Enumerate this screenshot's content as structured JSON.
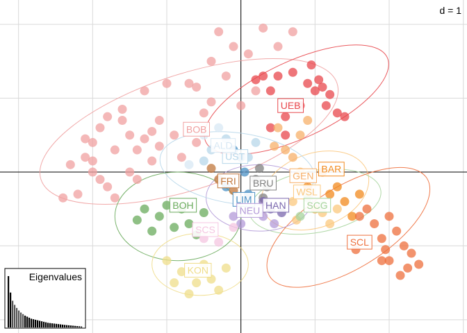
{
  "chart_data": {
    "type": "scatter",
    "scale_label": "d = 1",
    "grid": true,
    "xlim": [
      -3.25,
      3.05
    ],
    "ylim": [
      -2.18,
      2.33
    ],
    "groups": [
      {
        "name": "BOB",
        "color": "#f0a0a0",
        "label_pos": [
          -0.6,
          0.58
        ],
        "ellipse": {
          "cx": -0.7,
          "cy": 0.55,
          "rx": 2.1,
          "ry": 0.78,
          "angle": -18
        },
        "points": [
          [
            -0.3,
            1.9
          ],
          [
            -0.1,
            1.7
          ],
          [
            -0.4,
            1.5
          ],
          [
            -0.7,
            1.2
          ],
          [
            -1.0,
            1.2
          ],
          [
            -1.3,
            1.1
          ],
          [
            -1.6,
            0.85
          ],
          [
            -1.9,
            0.6
          ],
          [
            -2.0,
            0.4
          ],
          [
            -2.1,
            0.2
          ],
          [
            -2.0,
            0.0
          ],
          [
            -1.8,
            -0.2
          ],
          [
            -2.2,
            -0.3
          ],
          [
            -2.4,
            -0.35
          ],
          [
            -1.5,
            0.5
          ],
          [
            -1.4,
            0.3
          ],
          [
            -1.2,
            0.55
          ],
          [
            -1.1,
            0.7
          ],
          [
            -0.9,
            0.5
          ],
          [
            -0.8,
            0.2
          ],
          [
            -0.6,
            0.4
          ],
          [
            -0.5,
            0.8
          ],
          [
            -1.7,
            0.3
          ],
          [
            -1.9,
            -0.1
          ],
          [
            -2.3,
            0.1
          ],
          [
            -2.1,
            0.45
          ],
          [
            -1.6,
            0.7
          ],
          [
            -1.8,
            0.75
          ],
          [
            -1.3,
            0.45
          ],
          [
            -1.5,
            0.0
          ],
          [
            -1.2,
            0.15
          ],
          [
            -1.7,
            -0.35
          ],
          [
            -0.6,
            1.15
          ],
          [
            -0.2,
            1.3
          ],
          [
            0.1,
            1.6
          ],
          [
            0.3,
            1.95
          ],
          [
            0.5,
            1.7
          ],
          [
            0.7,
            1.9
          ],
          [
            0.2,
            1.1
          ],
          [
            0.0,
            0.9
          ],
          [
            -0.4,
            0.95
          ],
          [
            -2.0,
            0.15
          ],
          [
            -1.4,
            -0.1
          ],
          [
            -1.1,
            0.35
          ]
        ]
      },
      {
        "name": "UEB",
        "color": "#e8474c",
        "label_pos": [
          0.67,
          0.9
        ],
        "ellipse": {
          "cx": 0.75,
          "cy": 0.98,
          "rx": 1.35,
          "ry": 0.52,
          "angle": -25
        },
        "points": [
          [
            0.5,
            1.3
          ],
          [
            0.7,
            1.35
          ],
          [
            0.9,
            1.2
          ],
          [
            1.0,
            1.1
          ],
          [
            1.1,
            1.15
          ],
          [
            1.2,
            1.05
          ],
          [
            1.3,
            0.8
          ],
          [
            1.4,
            0.75
          ],
          [
            0.8,
            0.9
          ],
          [
            0.6,
            0.75
          ],
          [
            0.4,
            1.1
          ],
          [
            0.3,
            1.3
          ],
          [
            0.95,
            1.45
          ],
          [
            1.15,
            0.9
          ],
          [
            0.2,
            1.25
          ],
          [
            1.05,
            1.25
          ],
          [
            0.4,
            0.6
          ],
          [
            0.6,
            0.5
          ]
        ]
      },
      {
        "name": "BAR",
        "color": "#f28a1e",
        "label_pos": [
          1.22,
          0.04
        ],
        "ellipse": null,
        "points": [
          [
            1.1,
            0.0
          ],
          [
            1.2,
            -0.3
          ],
          [
            1.4,
            -0.4
          ],
          [
            1.5,
            -0.6
          ],
          [
            1.3,
            -0.2
          ],
          [
            1.0,
            -0.5
          ],
          [
            1.6,
            -0.3
          ],
          [
            0.9,
            -0.2
          ]
        ]
      },
      {
        "name": "GEN",
        "color": "#f7b06a",
        "label_pos": [
          0.84,
          -0.05
        ],
        "ellipse": null,
        "points": [
          [
            0.6,
            0.3
          ],
          [
            0.8,
            0.5
          ],
          [
            0.9,
            0.7
          ],
          [
            0.5,
            0.6
          ],
          [
            0.7,
            0.2
          ],
          [
            0.45,
            0.35
          ]
        ]
      },
      {
        "name": "WSL",
        "color": "#fbc87e",
        "label_pos": [
          0.89,
          -0.27
        ],
        "ellipse": {
          "cx": 1.0,
          "cy": -0.25,
          "rx": 0.75,
          "ry": 0.5,
          "angle": -20
        },
        "points": [
          [
            0.8,
            0.0
          ],
          [
            0.9,
            -0.3
          ],
          [
            1.0,
            -0.5
          ],
          [
            1.2,
            -0.7
          ],
          [
            0.7,
            -0.4
          ],
          [
            1.1,
            -0.55
          ],
          [
            1.3,
            -0.5
          ],
          [
            0.75,
            -0.65
          ]
        ]
      },
      {
        "name": "SCG",
        "color": "#a6d49c",
        "label_pos": [
          1.03,
          -0.45
        ],
        "ellipse": {
          "cx": 1.0,
          "cy": -0.4,
          "rx": 0.9,
          "ry": 0.42,
          "angle": -10
        },
        "points": [
          [
            0.9,
            -0.35
          ],
          [
            1.1,
            -0.45
          ],
          [
            0.8,
            -0.6
          ]
        ]
      },
      {
        "name": "SCL",
        "color": "#ee6f3c",
        "label_pos": [
          1.6,
          -0.95
        ],
        "ellipse": {
          "cx": 1.45,
          "cy": -0.75,
          "rx": 1.25,
          "ry": 0.55,
          "angle": -32
        },
        "points": [
          [
            2.0,
            -0.6
          ],
          [
            2.1,
            -0.8
          ],
          [
            2.2,
            -1.0
          ],
          [
            2.3,
            -1.1
          ],
          [
            2.0,
            -1.2
          ],
          [
            1.9,
            -0.9
          ],
          [
            2.25,
            -1.3
          ],
          [
            2.4,
            -1.25
          ],
          [
            1.8,
            -0.7
          ],
          [
            1.7,
            -0.5
          ],
          [
            1.95,
            -1.05
          ],
          [
            1.6,
            -0.6
          ],
          [
            1.9,
            -1.2
          ],
          [
            1.55,
            -1.05
          ],
          [
            2.15,
            -1.4
          ]
        ]
      },
      {
        "name": "BRU",
        "color": "#808080",
        "label_pos": [
          0.3,
          -0.15
        ],
        "ellipse": null,
        "points": [
          [
            0.2,
            -0.1
          ],
          [
            0.35,
            -0.2
          ],
          [
            0.25,
            0.05
          ],
          [
            0.3,
            -0.35
          ]
        ]
      },
      {
        "name": "HAN",
        "color": "#7b68ae",
        "label_pos": [
          0.47,
          -0.45
        ],
        "ellipse": null,
        "points": [
          [
            0.4,
            -0.5
          ],
          [
            0.55,
            -0.55
          ],
          [
            0.3,
            -0.4
          ]
        ]
      },
      {
        "name": "LIM",
        "color": "#4a90c4",
        "label_pos": [
          0.04,
          -0.37
        ],
        "ellipse": null,
        "points": [
          [
            0.0,
            0.2
          ],
          [
            0.1,
            -0.3
          ],
          [
            -0.2,
            -0.2
          ],
          [
            0.05,
            0.0
          ],
          [
            -0.1,
            0.3
          ]
        ]
      },
      {
        "name": "NEU",
        "color": "#b39ad8",
        "label_pos": [
          0.12,
          -0.52
        ],
        "ellipse": {
          "cx": 0.25,
          "cy": -0.35,
          "rx": 0.72,
          "ry": 0.45,
          "angle": 0
        },
        "points": [
          [
            0.0,
            -0.7
          ],
          [
            0.3,
            -0.6
          ],
          [
            -0.1,
            -0.6
          ],
          [
            0.45,
            -0.7
          ]
        ]
      },
      {
        "name": "FRI",
        "color": "#c0773c",
        "label_pos": [
          -0.17,
          -0.12
        ],
        "ellipse": null,
        "points": [
          [
            -0.3,
            -0.1
          ],
          [
            -0.1,
            -0.25
          ],
          [
            -0.4,
            0.05
          ]
        ]
      },
      {
        "name": "UST",
        "color": "#b7d7ea",
        "label_pos": [
          -0.08,
          0.21
        ],
        "ellipse": {
          "cx": -0.05,
          "cy": 0.05,
          "rx": 1.05,
          "ry": 0.48,
          "angle": 8
        },
        "points": [
          [
            -0.4,
            0.3
          ],
          [
            -0.2,
            0.45
          ],
          [
            0.1,
            0.2
          ],
          [
            -0.5,
            0.15
          ],
          [
            0.2,
            0.4
          ]
        ]
      },
      {
        "name": "ALD",
        "color": "#d8e8f4",
        "label_pos": [
          -0.24,
          0.36
        ],
        "ellipse": null,
        "points": [
          [
            -0.7,
            0.1
          ],
          [
            -0.5,
            0.5
          ],
          [
            -0.3,
            0.6
          ]
        ]
      },
      {
        "name": "BOH",
        "color": "#6aab5c",
        "label_pos": [
          -0.78,
          -0.45
        ],
        "ellipse": {
          "cx": -0.85,
          "cy": -0.6,
          "rx": 0.85,
          "ry": 0.6,
          "angle": 0
        },
        "points": [
          [
            -1.3,
            -0.5
          ],
          [
            -1.1,
            -0.6
          ],
          [
            -0.9,
            -0.75
          ],
          [
            -1.2,
            -0.8
          ],
          [
            -0.8,
            -0.5
          ],
          [
            -0.7,
            -0.7
          ],
          [
            -1.4,
            -0.65
          ],
          [
            -0.6,
            -0.85
          ],
          [
            -1.0,
            -0.45
          ],
          [
            -0.5,
            -0.55
          ]
        ]
      },
      {
        "name": "SCS",
        "color": "#f4c6e0",
        "label_pos": [
          -0.48,
          -0.78
        ],
        "ellipse": null,
        "points": [
          [
            -0.5,
            -0.9
          ],
          [
            -0.3,
            -0.95
          ],
          [
            -0.1,
            -0.75
          ]
        ]
      },
      {
        "name": "KON",
        "color": "#efdd8a",
        "label_pos": [
          -0.58,
          -1.33
        ],
        "ellipse": {
          "cx": -0.55,
          "cy": -1.25,
          "rx": 0.65,
          "ry": 0.42,
          "angle": 0
        },
        "points": [
          [
            -1.0,
            -1.2
          ],
          [
            -0.8,
            -1.35
          ],
          [
            -0.6,
            -1.5
          ],
          [
            -0.4,
            -1.45
          ],
          [
            -0.3,
            -1.6
          ],
          [
            -0.7,
            -1.65
          ],
          [
            -0.5,
            -1.25
          ],
          [
            -0.9,
            -1.5
          ],
          [
            -0.2,
            -1.3
          ]
        ]
      }
    ],
    "inset": {
      "title": "Eigenvalues",
      "values": [
        1.0,
        0.68,
        0.52,
        0.44,
        0.38,
        0.33,
        0.29,
        0.26,
        0.23,
        0.21,
        0.19,
        0.17,
        0.16,
        0.15,
        0.14,
        0.13,
        0.12,
        0.11,
        0.1,
        0.09,
        0.085,
        0.08,
        0.075,
        0.07,
        0.065,
        0.06,
        0.055,
        0.05,
        0.046,
        0.042,
        0.038,
        0.034,
        0.03,
        0.026,
        0.022,
        0.018
      ]
    }
  }
}
